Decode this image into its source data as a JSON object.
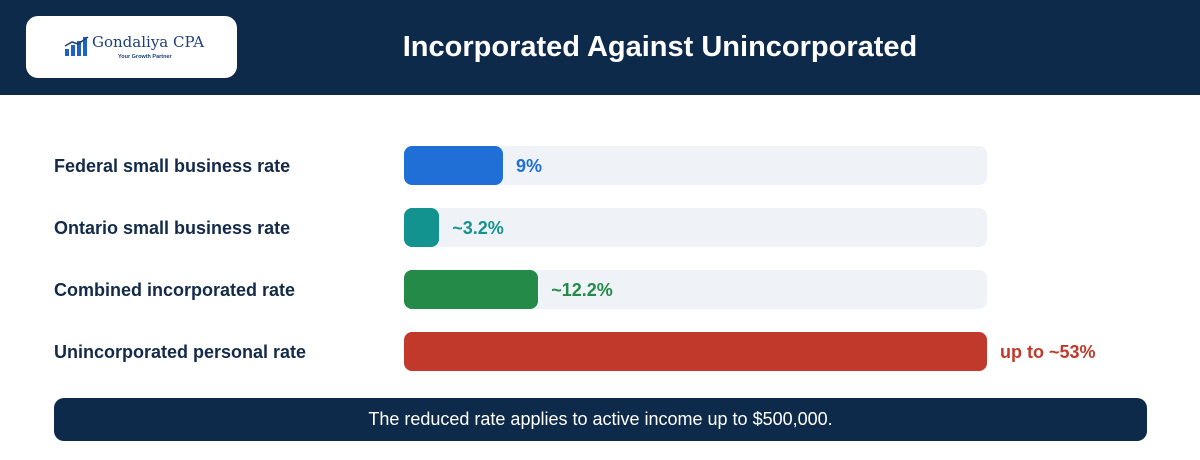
{
  "header": {
    "title": "Incorporated Against Unincorporated",
    "logo": {
      "name": "Gondaliya CPA",
      "tagline": "Your Growth Partner"
    }
  },
  "chart_data": {
    "type": "bar",
    "orientation": "horizontal",
    "title": "Incorporated Against Unincorporated",
    "categories": [
      "Federal small business rate",
      "Ontario small business rate",
      "Combined incorporated rate",
      "Unincorporated personal rate"
    ],
    "values": [
      9,
      3.2,
      12.2,
      53
    ],
    "value_labels": [
      "9%",
      "~3.2%",
      "~12.2%",
      "up to ~53%"
    ],
    "colors": [
      "#1f6fd6",
      "#13938f",
      "#238a47",
      "#c0392b"
    ],
    "xlim": [
      0,
      53
    ],
    "grid": false,
    "legend": "none"
  },
  "footer": {
    "note": "The reduced rate applies to active income up to $500,000."
  }
}
